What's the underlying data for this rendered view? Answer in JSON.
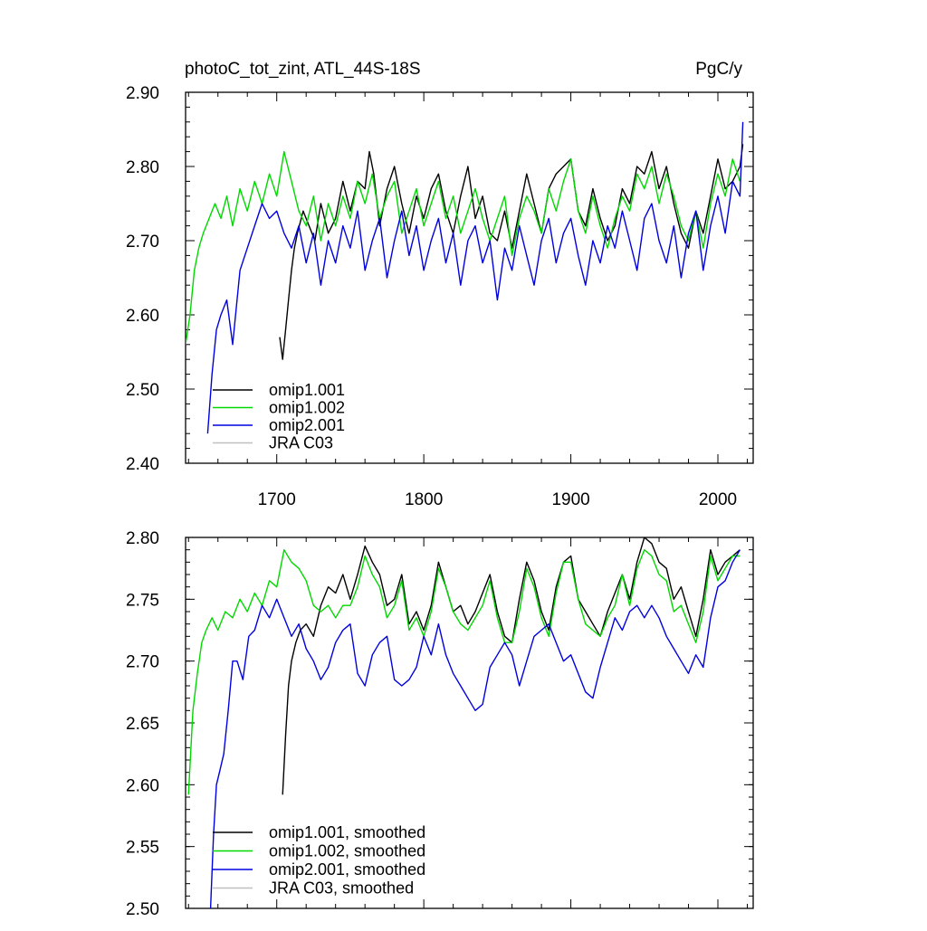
{
  "chart_data": [
    {
      "type": "line",
      "title": "photoC_tot_zint, ATL_44S-18S",
      "units": "PgC/y",
      "xlim": [
        1638,
        2024
      ],
      "ylim": [
        2.4,
        2.9
      ],
      "xticks": [
        1700,
        1800,
        1900,
        2000
      ],
      "yticks": [
        2.4,
        2.5,
        2.6,
        2.7,
        2.8,
        2.9
      ],
      "ytick_labels": [
        "2.40",
        "2.50",
        "2.60",
        "2.70",
        "2.80",
        "2.90"
      ],
      "legend_position": "bottom-left",
      "series": [
        {
          "name": "omip1.001",
          "color": "#000000",
          "x": [
            1702,
            1704,
            1706,
            1708,
            1710,
            1712,
            1714,
            1718,
            1722,
            1726,
            1730,
            1735,
            1740,
            1745,
            1750,
            1755,
            1760,
            1763,
            1766,
            1770,
            1775,
            1780,
            1785,
            1790,
            1795,
            1800,
            1805,
            1810,
            1815,
            1820,
            1825,
            1830,
            1835,
            1840,
            1845,
            1850,
            1855,
            1860,
            1865,
            1870,
            1875,
            1880,
            1885,
            1890,
            1895,
            1900,
            1905,
            1910,
            1915,
            1920,
            1925,
            1930,
            1935,
            1940,
            1945,
            1950,
            1955,
            1960,
            1965,
            1970,
            1975,
            1980,
            1985,
            1990,
            1995,
            2000,
            2005,
            2010,
            2015,
            2017
          ],
          "y": [
            2.57,
            2.54,
            2.58,
            2.62,
            2.66,
            2.69,
            2.71,
            2.74,
            2.72,
            2.7,
            2.75,
            2.71,
            2.73,
            2.78,
            2.74,
            2.78,
            2.77,
            2.82,
            2.79,
            2.72,
            2.77,
            2.8,
            2.75,
            2.71,
            2.76,
            2.73,
            2.77,
            2.79,
            2.74,
            2.71,
            2.76,
            2.8,
            2.73,
            2.76,
            2.71,
            2.7,
            2.74,
            2.69,
            2.74,
            2.79,
            2.75,
            2.71,
            2.77,
            2.79,
            2.8,
            2.81,
            2.74,
            2.72,
            2.77,
            2.73,
            2.7,
            2.72,
            2.77,
            2.75,
            2.8,
            2.79,
            2.82,
            2.77,
            2.8,
            2.75,
            2.71,
            2.69,
            2.74,
            2.71,
            2.76,
            2.81,
            2.77,
            2.78,
            2.8,
            2.83
          ]
        },
        {
          "name": "omip1.002",
          "color": "#00d800",
          "x": [
            1638,
            1641,
            1644,
            1647,
            1650,
            1654,
            1658,
            1662,
            1666,
            1670,
            1675,
            1680,
            1685,
            1690,
            1695,
            1700,
            1705,
            1710,
            1715,
            1720,
            1725,
            1730,
            1735,
            1740,
            1745,
            1750,
            1755,
            1760,
            1765,
            1770,
            1775,
            1780,
            1785,
            1790,
            1795,
            1800,
            1805,
            1810,
            1815,
            1820,
            1825,
            1830,
            1835,
            1840,
            1845,
            1850,
            1855,
            1860,
            1865,
            1870,
            1875,
            1880,
            1885,
            1890,
            1895,
            1900,
            1905,
            1910,
            1915,
            1920,
            1925,
            1930,
            1935,
            1940,
            1945,
            1950,
            1955,
            1960,
            1965,
            1970,
            1975,
            1980,
            1985,
            1990,
            1995,
            2000,
            2005,
            2010,
            2015
          ],
          "y": [
            2.56,
            2.6,
            2.66,
            2.69,
            2.71,
            2.73,
            2.75,
            2.73,
            2.76,
            2.72,
            2.77,
            2.74,
            2.78,
            2.75,
            2.79,
            2.76,
            2.82,
            2.78,
            2.74,
            2.72,
            2.76,
            2.7,
            2.75,
            2.72,
            2.76,
            2.73,
            2.78,
            2.75,
            2.79,
            2.73,
            2.76,
            2.78,
            2.71,
            2.74,
            2.77,
            2.72,
            2.75,
            2.78,
            2.73,
            2.76,
            2.71,
            2.74,
            2.77,
            2.73,
            2.7,
            2.73,
            2.76,
            2.68,
            2.73,
            2.76,
            2.74,
            2.71,
            2.77,
            2.74,
            2.78,
            2.81,
            2.74,
            2.71,
            2.76,
            2.72,
            2.69,
            2.73,
            2.76,
            2.74,
            2.79,
            2.77,
            2.8,
            2.75,
            2.79,
            2.76,
            2.72,
            2.7,
            2.74,
            2.69,
            2.75,
            2.79,
            2.76,
            2.81,
            2.78
          ]
        },
        {
          "name": "omip2.001",
          "color": "#0000e0",
          "x": [
            1653,
            1656,
            1659,
            1662,
            1666,
            1670,
            1675,
            1680,
            1685,
            1690,
            1695,
            1700,
            1705,
            1710,
            1715,
            1720,
            1725,
            1730,
            1735,
            1740,
            1745,
            1750,
            1755,
            1760,
            1765,
            1770,
            1775,
            1780,
            1785,
            1790,
            1795,
            1800,
            1805,
            1810,
            1815,
            1820,
            1825,
            1830,
            1835,
            1840,
            1845,
            1850,
            1855,
            1860,
            1865,
            1870,
            1875,
            1880,
            1885,
            1890,
            1895,
            1900,
            1905,
            1910,
            1915,
            1920,
            1925,
            1930,
            1935,
            1940,
            1945,
            1950,
            1955,
            1960,
            1965,
            1970,
            1975,
            1980,
            1985,
            1990,
            1995,
            2000,
            2005,
            2010,
            2015,
            2017
          ],
          "y": [
            2.44,
            2.52,
            2.58,
            2.6,
            2.62,
            2.56,
            2.66,
            2.69,
            2.72,
            2.75,
            2.73,
            2.74,
            2.71,
            2.69,
            2.72,
            2.67,
            2.71,
            2.64,
            2.7,
            2.67,
            2.72,
            2.69,
            2.74,
            2.66,
            2.7,
            2.73,
            2.65,
            2.7,
            2.74,
            2.68,
            2.72,
            2.66,
            2.7,
            2.73,
            2.67,
            2.71,
            2.64,
            2.7,
            2.72,
            2.67,
            2.7,
            2.62,
            2.69,
            2.66,
            2.72,
            2.68,
            2.64,
            2.7,
            2.73,
            2.67,
            2.71,
            2.73,
            2.68,
            2.64,
            2.7,
            2.67,
            2.72,
            2.69,
            2.74,
            2.7,
            2.66,
            2.73,
            2.75,
            2.7,
            2.67,
            2.72,
            2.65,
            2.71,
            2.74,
            2.66,
            2.72,
            2.76,
            2.71,
            2.78,
            2.76,
            2.86
          ]
        },
        {
          "name": "JRA C03",
          "color": "#c0c0c0",
          "x": [],
          "y": []
        }
      ]
    },
    {
      "type": "line",
      "xlim": [
        1638,
        2024
      ],
      "ylim": [
        2.5,
        2.8
      ],
      "xticks": [
        1700,
        1800,
        1900,
        2000
      ],
      "yticks": [
        2.5,
        2.55,
        2.6,
        2.65,
        2.7,
        2.75,
        2.8
      ],
      "ytick_labels": [
        "2.50",
        "2.55",
        "2.60",
        "2.65",
        "2.70",
        "2.75",
        "2.80"
      ],
      "legend_position": "bottom-left",
      "series": [
        {
          "name": "omip1.001, smoothed",
          "color": "#000000",
          "x": [
            1704,
            1706,
            1708,
            1710,
            1713,
            1716,
            1720,
            1725,
            1730,
            1735,
            1740,
            1745,
            1750,
            1755,
            1760,
            1765,
            1770,
            1775,
            1780,
            1785,
            1790,
            1795,
            1800,
            1805,
            1810,
            1815,
            1820,
            1825,
            1830,
            1835,
            1840,
            1845,
            1850,
            1855,
            1860,
            1865,
            1870,
            1875,
            1880,
            1885,
            1890,
            1895,
            1900,
            1905,
            1910,
            1915,
            1920,
            1925,
            1930,
            1935,
            1940,
            1945,
            1950,
            1955,
            1960,
            1965,
            1970,
            1975,
            1980,
            1985,
            1990,
            1995,
            2000,
            2005,
            2010,
            2015
          ],
          "y": [
            2.592,
            2.64,
            2.68,
            2.7,
            2.715,
            2.725,
            2.73,
            2.72,
            2.745,
            2.76,
            2.755,
            2.77,
            2.75,
            2.77,
            2.793,
            2.78,
            2.77,
            2.745,
            2.75,
            2.77,
            2.73,
            2.74,
            2.725,
            2.745,
            2.78,
            2.76,
            2.74,
            2.745,
            2.73,
            2.74,
            2.755,
            2.77,
            2.74,
            2.72,
            2.715,
            2.75,
            2.78,
            2.765,
            2.74,
            2.725,
            2.76,
            2.78,
            2.785,
            2.75,
            2.74,
            2.73,
            2.72,
            2.74,
            2.755,
            2.77,
            2.75,
            2.78,
            2.8,
            2.795,
            2.78,
            2.775,
            2.75,
            2.76,
            2.74,
            2.72,
            2.75,
            2.79,
            2.77,
            2.78,
            2.785,
            2.79
          ]
        },
        {
          "name": "omip1.002, smoothed",
          "color": "#00d800",
          "x": [
            1640,
            1643,
            1646,
            1649,
            1652,
            1656,
            1660,
            1665,
            1670,
            1675,
            1680,
            1685,
            1690,
            1695,
            1700,
            1705,
            1710,
            1715,
            1720,
            1725,
            1730,
            1735,
            1740,
            1745,
            1750,
            1755,
            1760,
            1765,
            1770,
            1775,
            1780,
            1785,
            1790,
            1795,
            1800,
            1805,
            1810,
            1815,
            1820,
            1825,
            1830,
            1835,
            1840,
            1845,
            1850,
            1855,
            1860,
            1865,
            1870,
            1875,
            1880,
            1885,
            1890,
            1895,
            1900,
            1905,
            1910,
            1915,
            1920,
            1925,
            1930,
            1935,
            1940,
            1945,
            1950,
            1955,
            1960,
            1965,
            1970,
            1975,
            1980,
            1985,
            1990,
            1995,
            2000,
            2005,
            2010,
            2015
          ],
          "y": [
            2.592,
            2.66,
            2.69,
            2.715,
            2.725,
            2.735,
            2.725,
            2.74,
            2.735,
            2.75,
            2.74,
            2.755,
            2.745,
            2.765,
            2.76,
            2.79,
            2.78,
            2.775,
            2.765,
            2.745,
            2.74,
            2.745,
            2.735,
            2.745,
            2.745,
            2.76,
            2.785,
            2.77,
            2.76,
            2.735,
            2.745,
            2.765,
            2.725,
            2.735,
            2.72,
            2.74,
            2.775,
            2.76,
            2.74,
            2.73,
            2.725,
            2.735,
            2.745,
            2.765,
            2.735,
            2.715,
            2.715,
            2.74,
            2.775,
            2.76,
            2.735,
            2.72,
            2.755,
            2.78,
            2.78,
            2.75,
            2.73,
            2.725,
            2.72,
            2.735,
            2.745,
            2.77,
            2.745,
            2.775,
            2.79,
            2.785,
            2.77,
            2.765,
            2.74,
            2.745,
            2.73,
            2.715,
            2.74,
            2.785,
            2.765,
            2.775,
            2.785,
            2.785
          ]
        },
        {
          "name": "omip2.001, smoothed",
          "color": "#0000e0",
          "x": [
            1655,
            1657,
            1659,
            1661,
            1664,
            1667,
            1670,
            1673,
            1677,
            1681,
            1685,
            1690,
            1695,
            1700,
            1705,
            1710,
            1715,
            1720,
            1725,
            1730,
            1735,
            1740,
            1745,
            1750,
            1755,
            1760,
            1765,
            1770,
            1775,
            1780,
            1785,
            1790,
            1795,
            1800,
            1805,
            1810,
            1815,
            1820,
            1825,
            1830,
            1835,
            1840,
            1845,
            1850,
            1855,
            1860,
            1865,
            1870,
            1875,
            1880,
            1885,
            1890,
            1895,
            1900,
            1905,
            1910,
            1915,
            1920,
            1925,
            1930,
            1935,
            1940,
            1945,
            1950,
            1955,
            1960,
            1965,
            1970,
            1975,
            1980,
            1985,
            1990,
            1995,
            2000,
            2005,
            2010,
            2015
          ],
          "y": [
            2.5,
            2.56,
            2.6,
            2.61,
            2.625,
            2.66,
            2.7,
            2.7,
            2.685,
            2.72,
            2.725,
            2.745,
            2.735,
            2.75,
            2.735,
            2.72,
            2.73,
            2.71,
            2.7,
            2.685,
            2.695,
            2.715,
            2.725,
            2.73,
            2.69,
            2.68,
            2.705,
            2.715,
            2.72,
            2.685,
            2.68,
            2.685,
            2.695,
            2.72,
            2.705,
            2.73,
            2.705,
            2.69,
            2.68,
            2.67,
            2.66,
            2.665,
            2.695,
            2.705,
            2.715,
            2.705,
            2.68,
            2.7,
            2.72,
            2.725,
            2.73,
            2.715,
            2.7,
            2.705,
            2.69,
            2.675,
            2.67,
            2.695,
            2.715,
            2.735,
            2.725,
            2.74,
            2.745,
            2.735,
            2.745,
            2.735,
            2.72,
            2.71,
            2.7,
            2.69,
            2.705,
            2.695,
            2.735,
            2.76,
            2.765,
            2.78,
            2.79
          ]
        },
        {
          "name": "JRA C03, smoothed",
          "color": "#c0c0c0",
          "x": [],
          "y": []
        }
      ]
    }
  ]
}
